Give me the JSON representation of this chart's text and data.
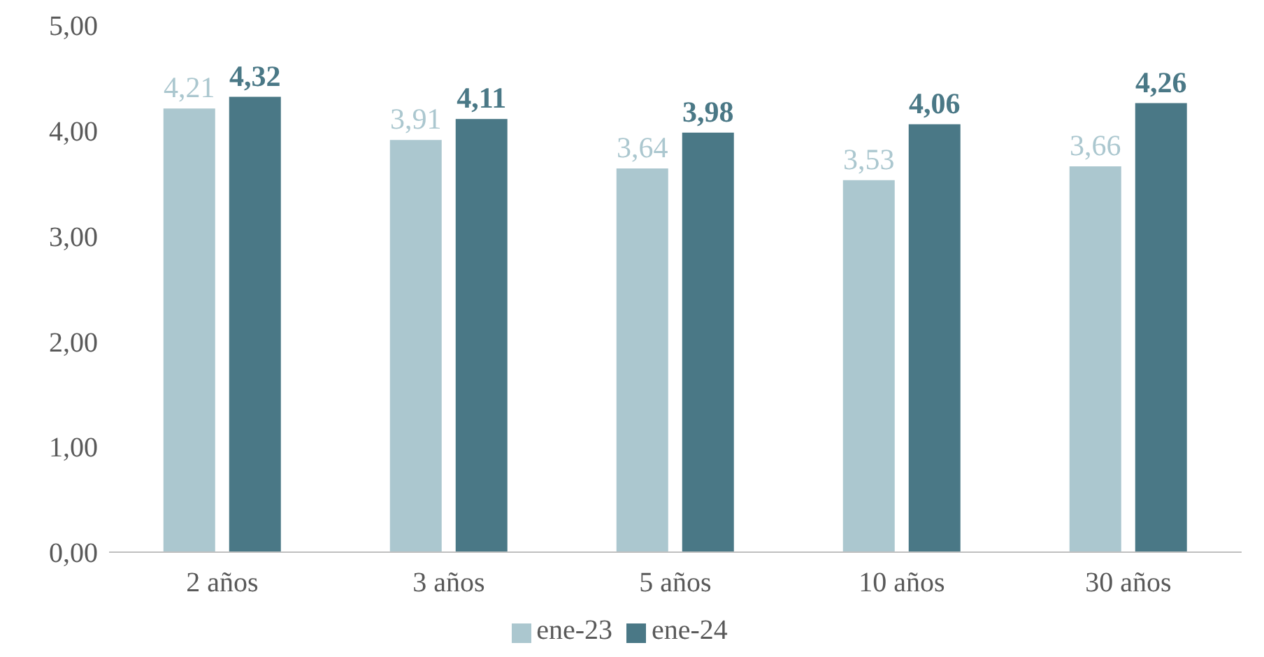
{
  "chart_data": {
    "type": "bar",
    "categories": [
      "2 años",
      "3 años",
      "5 años",
      "10 años",
      "30 años"
    ],
    "series": [
      {
        "name": "ene-23",
        "color": "#abc7cf",
        "values": [
          4.21,
          3.91,
          3.64,
          3.53,
          3.66
        ],
        "value_labels": [
          "4,21",
          "3,91",
          "3,64",
          "3,53",
          "3,66"
        ]
      },
      {
        "name": "ene-24",
        "color": "#4a7886",
        "values": [
          4.32,
          4.11,
          3.98,
          4.06,
          4.26
        ],
        "value_labels": [
          "4,32",
          "4,11",
          "3,98",
          "4,06",
          "4,26"
        ]
      }
    ],
    "ylim": [
      0,
      5
    ],
    "yticks": [
      {
        "value": 0,
        "label": "0,00"
      },
      {
        "value": 1,
        "label": "1,00"
      },
      {
        "value": 2,
        "label": "2,00"
      },
      {
        "value": 3,
        "label": "3,00"
      },
      {
        "value": 4,
        "label": "4,00"
      },
      {
        "value": 5,
        "label": "5,00"
      }
    ],
    "grid": false,
    "legend": "bottom"
  }
}
